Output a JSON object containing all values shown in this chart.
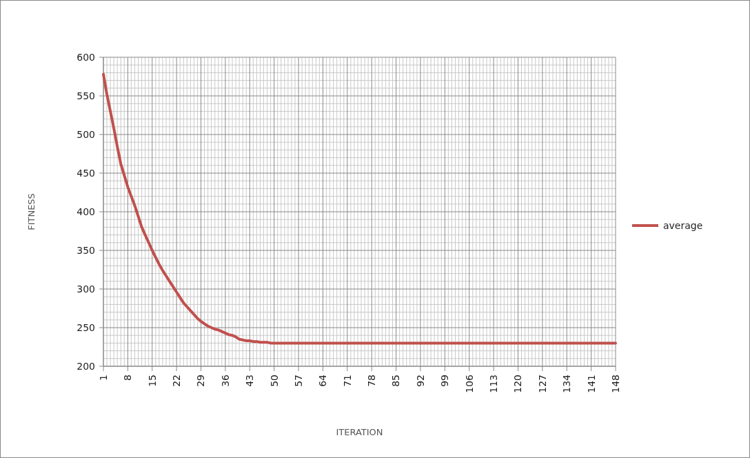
{
  "chart_data": {
    "type": "line",
    "xlabel": "ITERATION",
    "ylabel": "FITNESS",
    "categories": [
      "1",
      null,
      null,
      null,
      null,
      null,
      null,
      "8",
      null,
      null,
      null,
      null,
      null,
      null,
      "15",
      null,
      null,
      null,
      null,
      null,
      null,
      "22",
      null,
      null,
      null,
      null,
      null,
      null,
      "29",
      null,
      null,
      null,
      null,
      null,
      null,
      "36",
      null,
      null,
      null,
      null,
      null,
      null,
      "43",
      null,
      null,
      null,
      null,
      null,
      null,
      "50",
      null,
      null,
      null,
      null,
      null,
      null,
      "57",
      null,
      null,
      null,
      null,
      null,
      null,
      "64",
      null,
      null,
      null,
      null,
      null,
      null,
      "71",
      null,
      null,
      null,
      null,
      null,
      null,
      "78",
      null,
      null,
      null,
      null,
      null,
      null,
      "85",
      null,
      null,
      null,
      null,
      null,
      null,
      "92",
      null,
      null,
      null,
      null,
      null,
      null,
      "99",
      null,
      null,
      null,
      null,
      null,
      null,
      "106",
      null,
      null,
      null,
      null,
      null,
      null,
      "113",
      null,
      null,
      null,
      null,
      null,
      null,
      "120",
      null,
      null,
      null,
      null,
      null,
      null,
      "127",
      null,
      null,
      null,
      null,
      null,
      null,
      "134",
      null,
      null,
      null,
      null,
      null,
      null,
      "141",
      null,
      null,
      null,
      null,
      null,
      null,
      "148"
    ],
    "series": [
      {
        "name": "average",
        "color": "#c0504d",
        "values": [
          578,
          552,
          530,
          508,
          484,
          462,
          447,
          432,
          420,
          408,
          394,
          380,
          370,
          360,
          350,
          341,
          332,
          324,
          317,
          310,
          303,
          296,
          289,
          282,
          277,
          272,
          267,
          262,
          258,
          255,
          252,
          250,
          248,
          247,
          245,
          243,
          241,
          240,
          238,
          235,
          234,
          233,
          233,
          232,
          232,
          231,
          231,
          231,
          230,
          230,
          230,
          230,
          230,
          230,
          230,
          230,
          230,
          230,
          230,
          230,
          230,
          230,
          230,
          230,
          230,
          230,
          230,
          230,
          230,
          230,
          230,
          230,
          230,
          230,
          230,
          230,
          230,
          230,
          230,
          230,
          230,
          230,
          230,
          230,
          230,
          230,
          230,
          230,
          230,
          230,
          230,
          230,
          230,
          230,
          230,
          230,
          230,
          230,
          230,
          230,
          230,
          230,
          230,
          230,
          230,
          230,
          230,
          230,
          230,
          230,
          230,
          230,
          230,
          230,
          230,
          230,
          230,
          230,
          230,
          230,
          230,
          230,
          230,
          230,
          230,
          230,
          230,
          230,
          230,
          230,
          230,
          230,
          230,
          230,
          230,
          230,
          230,
          230,
          230,
          230,
          230,
          230,
          230,
          230,
          230,
          230,
          230,
          230
        ]
      }
    ],
    "ylim": [
      200,
      600
    ],
    "yticks": [
      200,
      250,
      300,
      350,
      400,
      450,
      500,
      550,
      600
    ],
    "grid": true,
    "legend": "right",
    "line_style": "solid",
    "marker": "none"
  }
}
